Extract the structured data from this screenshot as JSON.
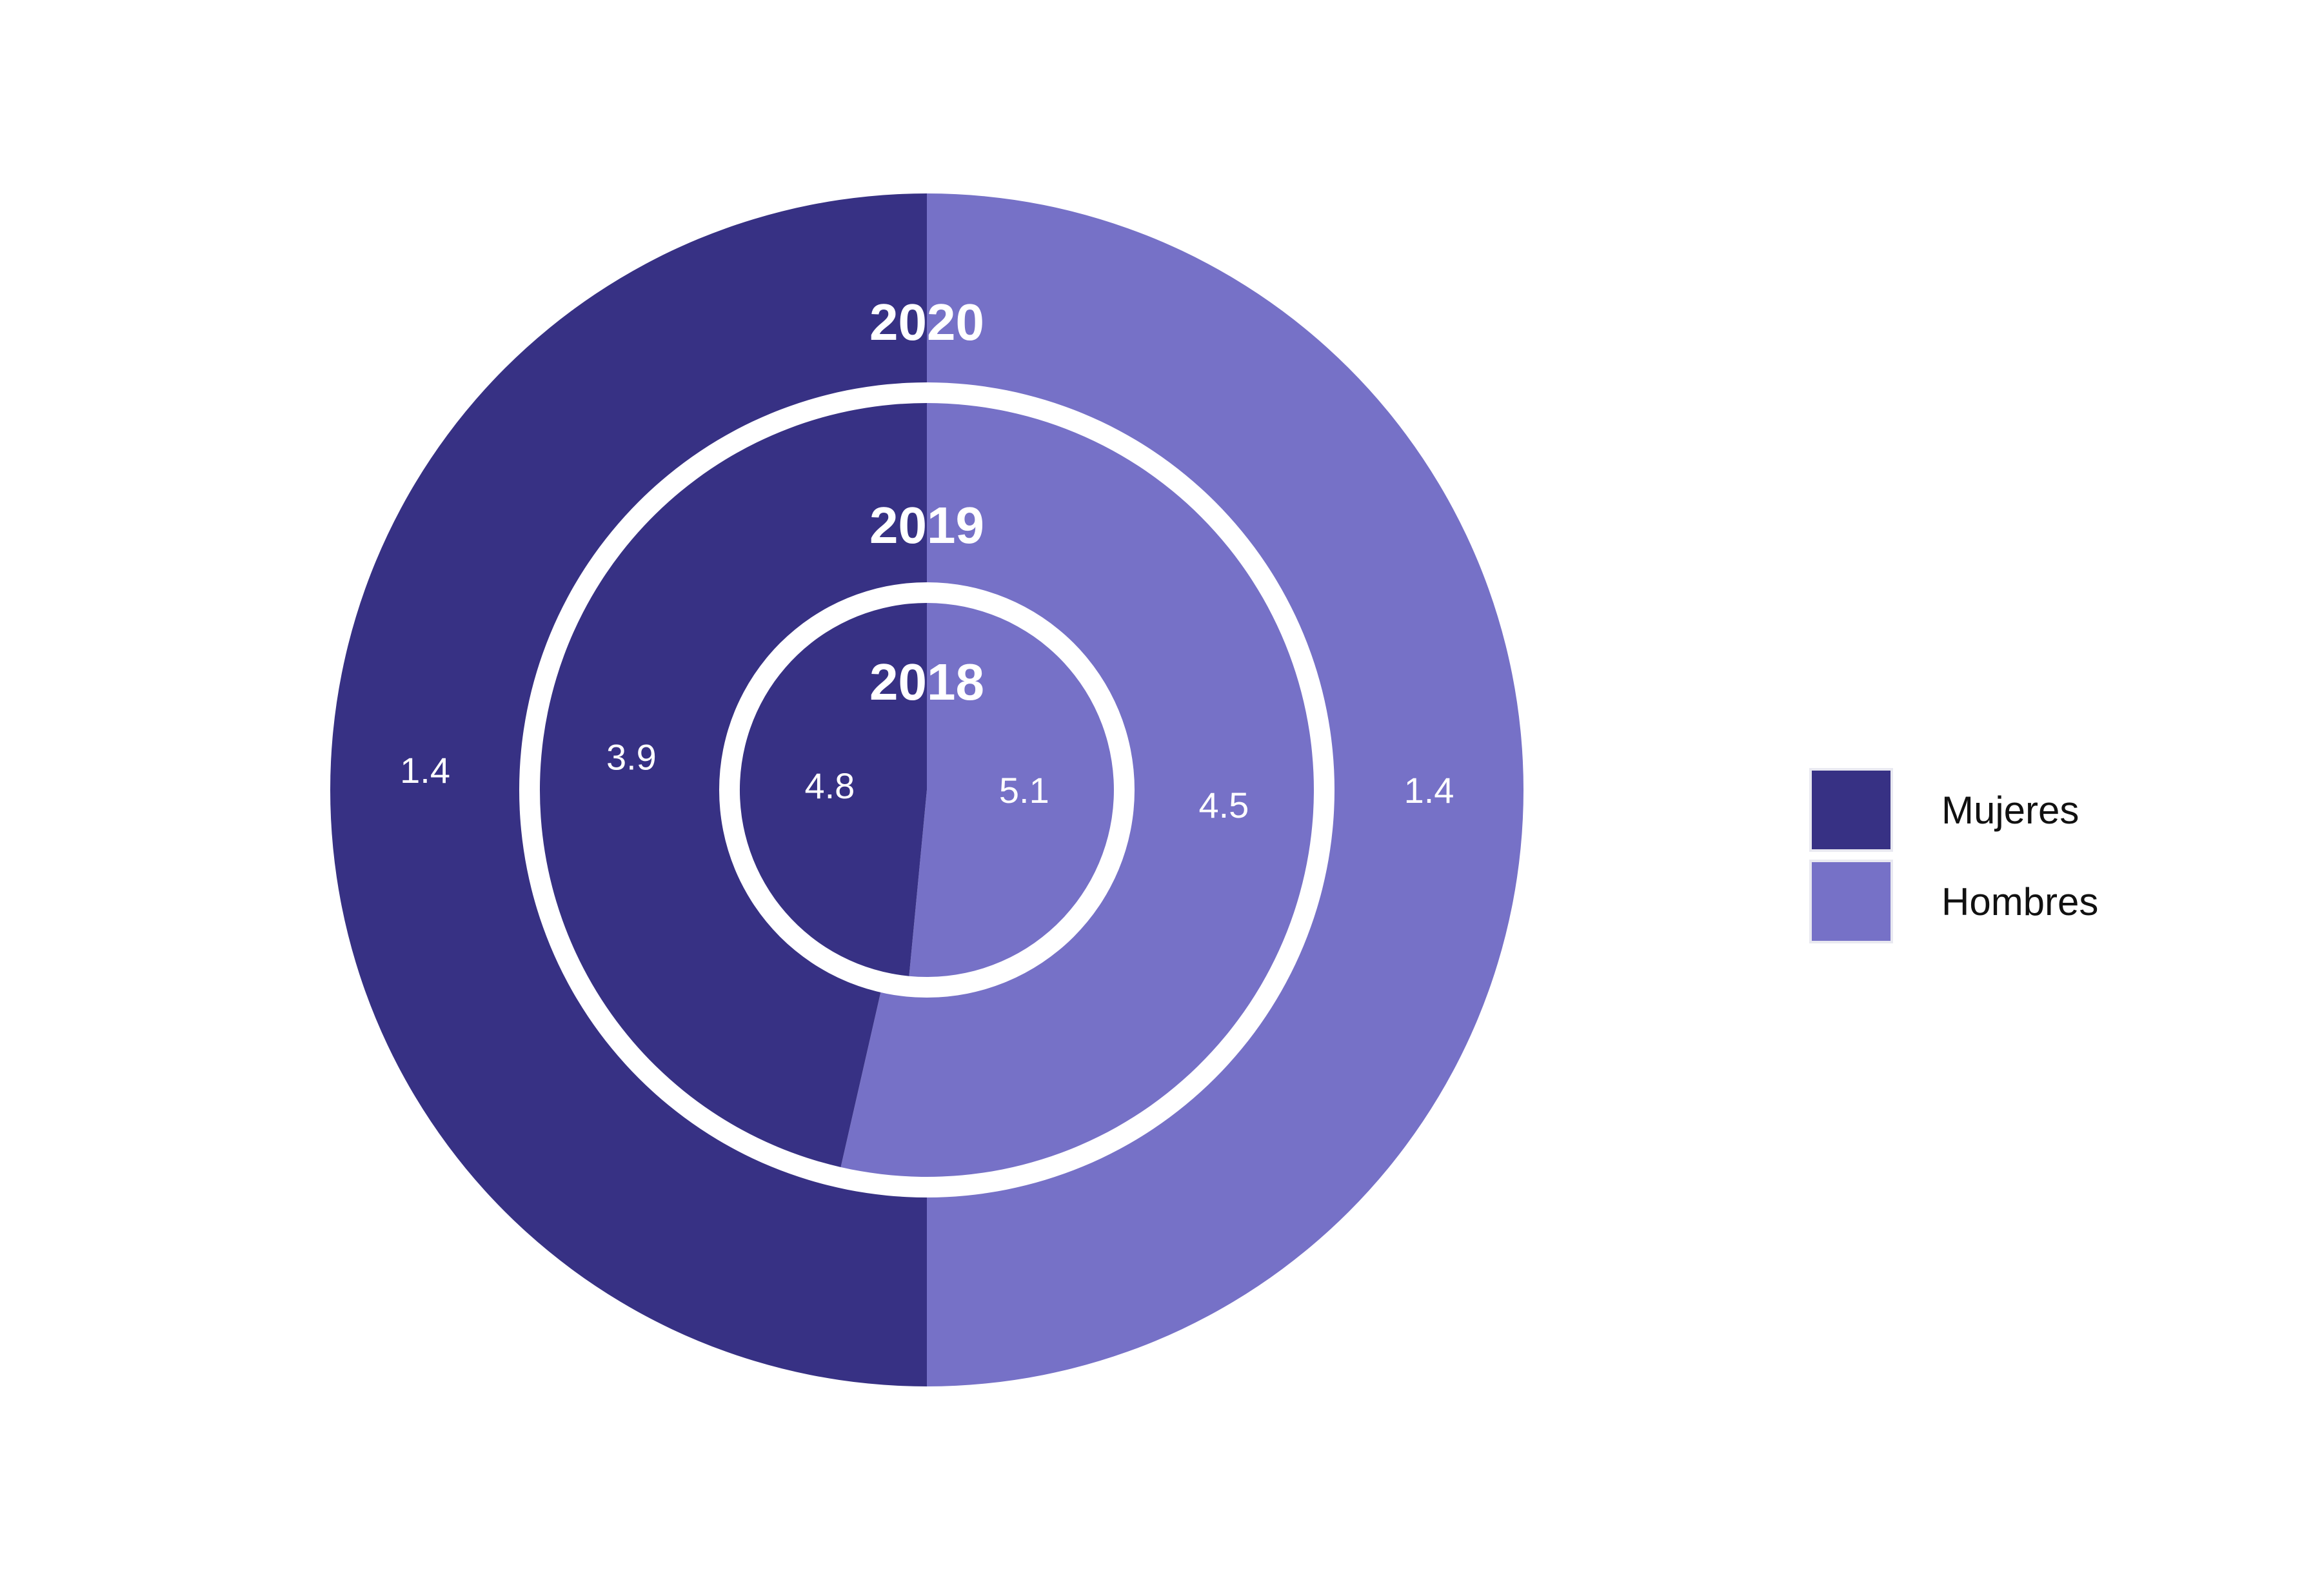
{
  "chart_data": {
    "type": "pie",
    "variant": "nested-donut",
    "title": "",
    "series_labels": [
      "Mujeres",
      "Hombres"
    ],
    "colors": {
      "Mujeres": "#373184",
      "Hombres": "#7671c7"
    },
    "rings": [
      {
        "year": "2018",
        "values": {
          "Mujeres": 4.8,
          "Hombres": 5.1
        },
        "labels": {
          "Mujeres": "4.8",
          "Hombres": "5.1"
        }
      },
      {
        "year": "2019",
        "values": {
          "Mujeres": 3.9,
          "Hombres": 4.5
        },
        "labels": {
          "Mujeres": "3.9",
          "Hombres": "4.5"
        }
      },
      {
        "year": "2020",
        "values": {
          "Mujeres": 1.4,
          "Hombres": 1.4
        },
        "labels": {
          "Mujeres": "1.4",
          "Hombres": "1.4"
        }
      }
    ],
    "legend_position": "right"
  }
}
